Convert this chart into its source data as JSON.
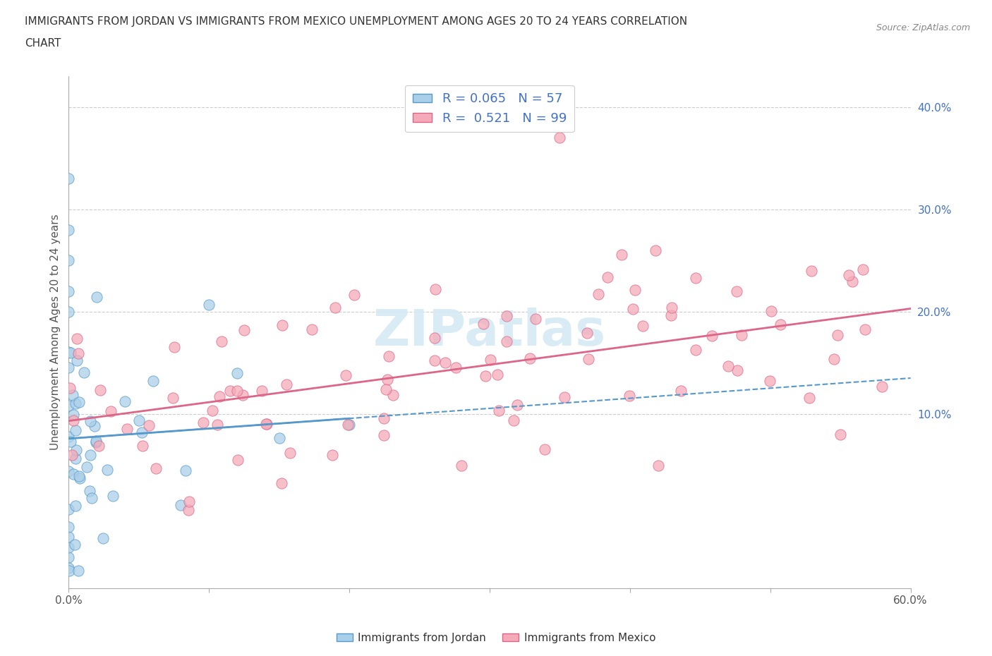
{
  "title_line1": "IMMIGRANTS FROM JORDAN VS IMMIGRANTS FROM MEXICO UNEMPLOYMENT AMONG AGES 20 TO 24 YEARS CORRELATION",
  "title_line2": "CHART",
  "source_text": "Source: ZipAtlas.com",
  "ylabel": "Unemployment Among Ages 20 to 24 years",
  "xlim": [
    0.0,
    0.6
  ],
  "ylim": [
    -0.07,
    0.43
  ],
  "xtick_positions": [
    0.0,
    0.1,
    0.2,
    0.3,
    0.4,
    0.5,
    0.6
  ],
  "xticklabels": [
    "0.0%",
    "",
    "",
    "",
    "",
    "",
    "60.0%"
  ],
  "ytick_right": [
    0.1,
    0.2,
    0.3,
    0.4
  ],
  "ytick_right_labels": [
    "10.0%",
    "20.0%",
    "30.0%",
    "40.0%"
  ],
  "jordan_color": "#aacfe8",
  "mexico_color": "#f4aab8",
  "jordan_edge_color": "#5599cc",
  "mexico_edge_color": "#dd6688",
  "jordan_R": 0.065,
  "jordan_N": 57,
  "mexico_R": 0.521,
  "mexico_N": 99,
  "trend_jordan_color": "#5599cc",
  "trend_mexico_color": "#dd6688",
  "watermark_color": "#d5eaf5",
  "background_color": "#ffffff",
  "legend_label_jordan": "Immigrants from Jordan",
  "legend_label_mexico": "Immigrants from Mexico",
  "legend_text_color": "#4472c4",
  "ytick_color": "#4472c4",
  "grid_color": "#cccccc",
  "title_color": "#333333",
  "axis_label_color": "#555555"
}
